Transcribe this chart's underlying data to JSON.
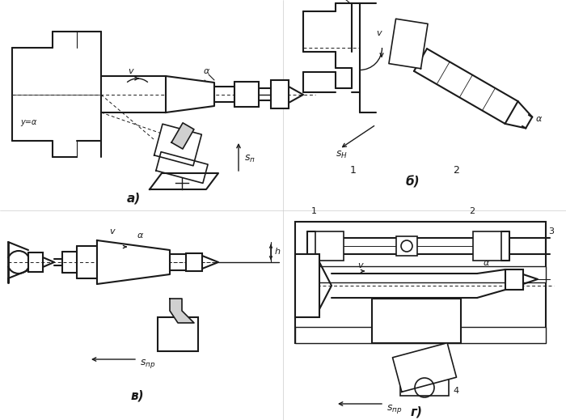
{
  "background_color": "#ffffff",
  "line_color": "#1a1a1a",
  "lw": 1.0,
  "fig_width": 7.0,
  "fig_height": 5.19,
  "labels": {
    "a": "а)",
    "b": "б)",
    "v_label": "в)",
    "g": "г)",
    "v": "v",
    "alpha": "α",
    "y_alpha": "y=α",
    "sn": "$s_{\\\\n}$",
    "sh": "$s_{H}$",
    "spr": "$s_{np}$",
    "h": "h",
    "n1": "1",
    "n2": "2",
    "n3": "3",
    "n4": "4",
    "b_label": "б)"
  }
}
